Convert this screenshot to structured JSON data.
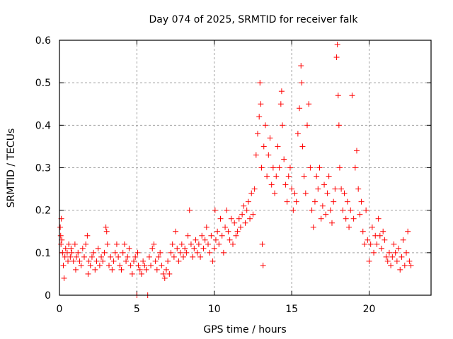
{
  "chart_data": {
    "type": "scatter",
    "title": "Day 074 of 2025, SRMTID for receiver falk",
    "xlabel": "GPS time / hours",
    "ylabel": "SRMTID / TECUs",
    "xlim": [
      0,
      24
    ],
    "ylim": [
      0,
      0.6
    ],
    "xticks": [
      0,
      5,
      10,
      15,
      20
    ],
    "xtick_labels": [
      "0",
      "5",
      "10",
      "15",
      "20"
    ],
    "yticks": [
      0,
      0.1,
      0.2,
      0.3,
      0.4,
      0.5,
      0.6
    ],
    "ytick_labels": [
      "0",
      "0.1",
      "0.2",
      "0.3",
      "0.4",
      "0.5",
      "0.6"
    ],
    "grid": true,
    "marker": "plus",
    "color": "#ff0000",
    "series": [
      {
        "name": "SRMTID",
        "points": [
          [
            0.05,
            0.16
          ],
          [
            0.08,
            0.14
          ],
          [
            0.1,
            0.12
          ],
          [
            0.12,
            0.18
          ],
          [
            0.15,
            0.13
          ],
          [
            0.2,
            0.1
          ],
          [
            0.25,
            0.07
          ],
          [
            0.3,
            0.04
          ],
          [
            0.35,
            0.09
          ],
          [
            0.4,
            0.11
          ],
          [
            0.5,
            0.1
          ],
          [
            0.55,
            0.08
          ],
          [
            0.6,
            0.12
          ],
          [
            0.7,
            0.09
          ],
          [
            0.75,
            0.11
          ],
          [
            0.8,
            0.1
          ],
          [
            0.9,
            0.08
          ],
          [
            1.0,
            0.12
          ],
          [
            1.05,
            0.06
          ],
          [
            1.1,
            0.09
          ],
          [
            1.2,
            0.1
          ],
          [
            1.3,
            0.08
          ],
          [
            1.4,
            0.07
          ],
          [
            1.5,
            0.11
          ],
          [
            1.6,
            0.09
          ],
          [
            1.7,
            0.12
          ],
          [
            1.8,
            0.14
          ],
          [
            1.85,
            0.05
          ],
          [
            1.9,
            0.08
          ],
          [
            2.0,
            0.07
          ],
          [
            2.1,
            0.09
          ],
          [
            2.2,
            0.1
          ],
          [
            2.3,
            0.06
          ],
          [
            2.4,
            0.08
          ],
          [
            2.5,
            0.11
          ],
          [
            2.6,
            0.07
          ],
          [
            2.7,
            0.09
          ],
          [
            2.8,
            0.08
          ],
          [
            2.9,
            0.1
          ],
          [
            3.0,
            0.16
          ],
          [
            3.05,
            0.15
          ],
          [
            3.1,
            0.12
          ],
          [
            3.2,
            0.07
          ],
          [
            3.3,
            0.09
          ],
          [
            3.4,
            0.06
          ],
          [
            3.5,
            0.08
          ],
          [
            3.6,
            0.1
          ],
          [
            3.7,
            0.12
          ],
          [
            3.8,
            0.09
          ],
          [
            3.9,
            0.07
          ],
          [
            4.0,
            0.06
          ],
          [
            4.1,
            0.1
          ],
          [
            4.2,
            0.12
          ],
          [
            4.3,
            0.08
          ],
          [
            4.4,
            0.09
          ],
          [
            4.5,
            0.11
          ],
          [
            4.6,
            0.07
          ],
          [
            4.7,
            0.05
          ],
          [
            4.8,
            0.08
          ],
          [
            4.9,
            0.09
          ],
          [
            5.0,
            0.0
          ],
          [
            5.05,
            0.1
          ],
          [
            5.1,
            0.07
          ],
          [
            5.2,
            0.06
          ],
          [
            5.3,
            0.05
          ],
          [
            5.4,
            0.08
          ],
          [
            5.5,
            0.07
          ],
          [
            5.6,
            0.06
          ],
          [
            5.7,
            0.0
          ],
          [
            5.8,
            0.09
          ],
          [
            5.9,
            0.07
          ],
          [
            6.0,
            0.11
          ],
          [
            6.1,
            0.12
          ],
          [
            6.2,
            0.08
          ],
          [
            6.3,
            0.06
          ],
          [
            6.4,
            0.09
          ],
          [
            6.5,
            0.1
          ],
          [
            6.6,
            0.07
          ],
          [
            6.7,
            0.05
          ],
          [
            6.8,
            0.04
          ],
          [
            6.9,
            0.06
          ],
          [
            7.0,
            0.08
          ],
          [
            7.1,
            0.05
          ],
          [
            7.2,
            0.1
          ],
          [
            7.3,
            0.12
          ],
          [
            7.4,
            0.09
          ],
          [
            7.5,
            0.15
          ],
          [
            7.6,
            0.11
          ],
          [
            7.7,
            0.08
          ],
          [
            7.8,
            0.1
          ],
          [
            7.9,
            0.12
          ],
          [
            8.0,
            0.09
          ],
          [
            8.1,
            0.11
          ],
          [
            8.2,
            0.1
          ],
          [
            8.3,
            0.14
          ],
          [
            8.4,
            0.2
          ],
          [
            8.5,
            0.12
          ],
          [
            8.6,
            0.09
          ],
          [
            8.7,
            0.11
          ],
          [
            8.8,
            0.13
          ],
          [
            8.9,
            0.1
          ],
          [
            9.0,
            0.12
          ],
          [
            9.1,
            0.09
          ],
          [
            9.2,
            0.14
          ],
          [
            9.3,
            0.11
          ],
          [
            9.4,
            0.13
          ],
          [
            9.5,
            0.16
          ],
          [
            9.6,
            0.12
          ],
          [
            9.7,
            0.1
          ],
          [
            9.8,
            0.14
          ],
          [
            9.9,
            0.08
          ],
          [
            10.0,
            0.11
          ],
          [
            10.05,
            0.2
          ],
          [
            10.1,
            0.13
          ],
          [
            10.2,
            0.15
          ],
          [
            10.3,
            0.12
          ],
          [
            10.4,
            0.18
          ],
          [
            10.5,
            0.14
          ],
          [
            10.6,
            0.1
          ],
          [
            10.7,
            0.16
          ],
          [
            10.8,
            0.2
          ],
          [
            10.9,
            0.15
          ],
          [
            11.0,
            0.13
          ],
          [
            11.1,
            0.18
          ],
          [
            11.2,
            0.12
          ],
          [
            11.3,
            0.17
          ],
          [
            11.4,
            0.14
          ],
          [
            11.5,
            0.15
          ],
          [
            11.6,
            0.18
          ],
          [
            11.7,
            0.16
          ],
          [
            11.8,
            0.19
          ],
          [
            11.9,
            0.21
          ],
          [
            12.0,
            0.17
          ],
          [
            12.1,
            0.2
          ],
          [
            12.2,
            0.22
          ],
          [
            12.3,
            0.18
          ],
          [
            12.4,
            0.24
          ],
          [
            12.5,
            0.19
          ],
          [
            12.6,
            0.25
          ],
          [
            12.7,
            0.33
          ],
          [
            12.8,
            0.38
          ],
          [
            12.9,
            0.42
          ],
          [
            12.95,
            0.5
          ],
          [
            13.0,
            0.45
          ],
          [
            13.05,
            0.3
          ],
          [
            13.1,
            0.12
          ],
          [
            13.15,
            0.07
          ],
          [
            13.2,
            0.35
          ],
          [
            13.3,
            0.4
          ],
          [
            13.4,
            0.28
          ],
          [
            13.5,
            0.33
          ],
          [
            13.6,
            0.37
          ],
          [
            13.7,
            0.26
          ],
          [
            13.8,
            0.3
          ],
          [
            13.9,
            0.24
          ],
          [
            14.0,
            0.28
          ],
          [
            14.1,
            0.35
          ],
          [
            14.2,
            0.3
          ],
          [
            14.3,
            0.45
          ],
          [
            14.35,
            0.48
          ],
          [
            14.4,
            0.4
          ],
          [
            14.5,
            0.32
          ],
          [
            14.6,
            0.26
          ],
          [
            14.7,
            0.22
          ],
          [
            14.8,
            0.28
          ],
          [
            14.9,
            0.3
          ],
          [
            15.0,
            0.25
          ],
          [
            15.1,
            0.2
          ],
          [
            15.2,
            0.24
          ],
          [
            15.3,
            0.22
          ],
          [
            15.4,
            0.38
          ],
          [
            15.5,
            0.44
          ],
          [
            15.6,
            0.54
          ],
          [
            15.65,
            0.5
          ],
          [
            15.7,
            0.35
          ],
          [
            15.8,
            0.28
          ],
          [
            15.9,
            0.24
          ],
          [
            16.0,
            0.4
          ],
          [
            16.1,
            0.45
          ],
          [
            16.2,
            0.3
          ],
          [
            16.3,
            0.2
          ],
          [
            16.4,
            0.16
          ],
          [
            16.5,
            0.22
          ],
          [
            16.6,
            0.28
          ],
          [
            16.7,
            0.25
          ],
          [
            16.8,
            0.3
          ],
          [
            16.9,
            0.18
          ],
          [
            17.0,
            0.21
          ],
          [
            17.1,
            0.26
          ],
          [
            17.2,
            0.19
          ],
          [
            17.3,
            0.24
          ],
          [
            17.4,
            0.28
          ],
          [
            17.5,
            0.2
          ],
          [
            17.6,
            0.17
          ],
          [
            17.7,
            0.22
          ],
          [
            17.8,
            0.25
          ],
          [
            17.9,
            0.56
          ],
          [
            17.95,
            0.59
          ],
          [
            18.0,
            0.47
          ],
          [
            18.05,
            0.4
          ],
          [
            18.1,
            0.3
          ],
          [
            18.2,
            0.25
          ],
          [
            18.3,
            0.2
          ],
          [
            18.4,
            0.24
          ],
          [
            18.5,
            0.18
          ],
          [
            18.6,
            0.22
          ],
          [
            18.7,
            0.16
          ],
          [
            18.8,
            0.2
          ],
          [
            18.9,
            0.47
          ],
          [
            19.0,
            0.18
          ],
          [
            19.1,
            0.3
          ],
          [
            19.2,
            0.34
          ],
          [
            19.3,
            0.25
          ],
          [
            19.4,
            0.19
          ],
          [
            19.5,
            0.22
          ],
          [
            19.6,
            0.15
          ],
          [
            19.7,
            0.12
          ],
          [
            19.8,
            0.2
          ],
          [
            19.9,
            0.13
          ],
          [
            20.0,
            0.08
          ],
          [
            20.1,
            0.12
          ],
          [
            20.2,
            0.16
          ],
          [
            20.3,
            0.1
          ],
          [
            20.4,
            0.14
          ],
          [
            20.5,
            0.12
          ],
          [
            20.6,
            0.18
          ],
          [
            20.7,
            0.14
          ],
          [
            20.8,
            0.11
          ],
          [
            20.9,
            0.15
          ],
          [
            21.0,
            0.13
          ],
          [
            21.1,
            0.09
          ],
          [
            21.2,
            0.08
          ],
          [
            21.3,
            0.1
          ],
          [
            21.4,
            0.07
          ],
          [
            21.5,
            0.09
          ],
          [
            21.6,
            0.12
          ],
          [
            21.7,
            0.1
          ],
          [
            21.8,
            0.08
          ],
          [
            21.9,
            0.11
          ],
          [
            22.0,
            0.06
          ],
          [
            22.1,
            0.09
          ],
          [
            22.2,
            0.13
          ],
          [
            22.3,
            0.07
          ],
          [
            22.4,
            0.1
          ],
          [
            22.5,
            0.15
          ],
          [
            22.6,
            0.08
          ],
          [
            22.7,
            0.07
          ]
        ]
      }
    ]
  }
}
